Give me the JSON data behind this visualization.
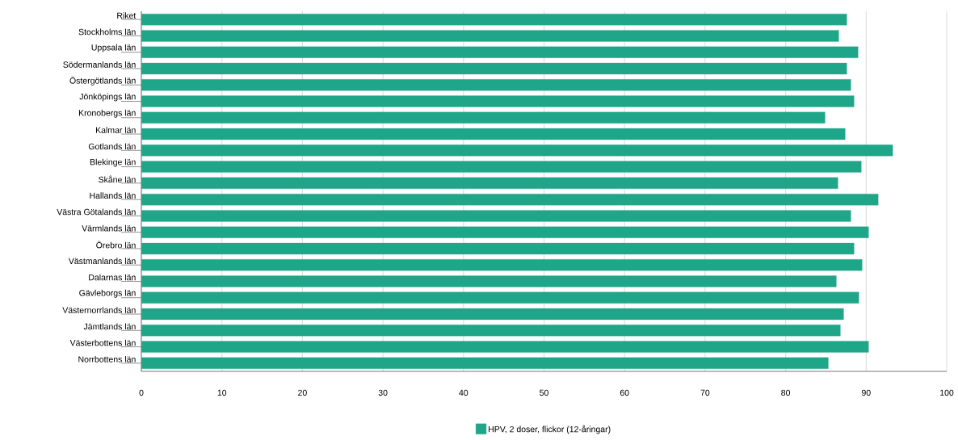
{
  "chart_data": {
    "type": "bar",
    "orientation": "horizontal",
    "categories": [
      "Riket",
      "Stockholms län",
      "Uppsala län",
      "Södermanlands län",
      "Östergötlands län",
      "Jönköpings län",
      "Kronobergs län",
      "Kalmar län",
      "Gotlands län",
      "Blekinge län",
      "Skåne län",
      "Hallands län",
      "Västra Götalands län",
      "Värmlands län",
      "Örebro län",
      "Västmanlands län",
      "Dalarnas län",
      "Gävleborgs län",
      "Västernorrlands län",
      "Jämtlands län",
      "Västerbottens län",
      "Norrbottens län"
    ],
    "series": [
      {
        "name": "HPV, 2 doser, flickor (12-åringar)",
        "color": "#1fa588",
        "values": [
          87.6,
          86.6,
          89.0,
          87.6,
          88.1,
          88.5,
          84.9,
          87.4,
          93.3,
          89.4,
          86.5,
          91.5,
          88.1,
          90.3,
          88.5,
          89.5,
          86.3,
          89.1,
          87.2,
          86.8,
          90.3,
          85.3
        ]
      }
    ],
    "xlim": [
      0,
      100
    ],
    "xticks": [
      0,
      10,
      20,
      30,
      40,
      50,
      60,
      70,
      80,
      90,
      100
    ],
    "grid": "x",
    "legend": "bottom"
  }
}
